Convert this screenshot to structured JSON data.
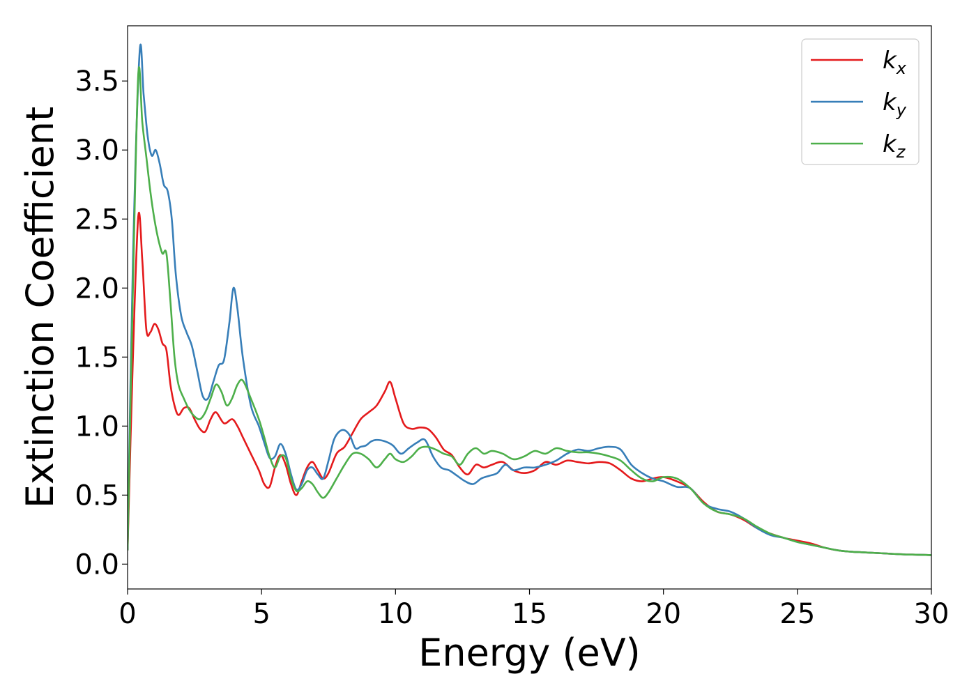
{
  "chart_data": {
    "type": "line",
    "xlabel": "Energy (eV)",
    "ylabel": "Extinction Coefficient",
    "xlim": [
      0,
      30
    ],
    "ylim": [
      -0.18,
      3.9
    ],
    "xticks": [
      0,
      5,
      10,
      15,
      20,
      25,
      30
    ],
    "xtick_labels": [
      "0",
      "5",
      "10",
      "15",
      "20",
      "25",
      "30"
    ],
    "yticks": [
      0.0,
      0.5,
      1.0,
      1.5,
      2.0,
      2.5,
      3.0,
      3.5
    ],
    "ytick_labels": [
      "0.0",
      "0.5",
      "1.0",
      "1.5",
      "2.0",
      "2.5",
      "3.0",
      "3.5"
    ],
    "grid": false,
    "legend_position": "top-right",
    "series": [
      {
        "name": "k",
        "subscript": "x",
        "color": "#e41a1c",
        "x": [
          0,
          0.2,
          0.4,
          0.55,
          0.7,
          0.85,
          1.0,
          1.15,
          1.3,
          1.45,
          1.6,
          1.75,
          1.9,
          2.1,
          2.3,
          2.5,
          2.7,
          2.9,
          3.1,
          3.3,
          3.6,
          3.9,
          4.1,
          4.3,
          4.6,
          4.9,
          5.1,
          5.3,
          5.5,
          5.7,
          5.9,
          6.1,
          6.3,
          6.5,
          6.7,
          6.9,
          7.1,
          7.3,
          7.5,
          7.8,
          8.1,
          8.4,
          8.7,
          9.0,
          9.3,
          9.6,
          9.8,
          10.0,
          10.3,
          10.6,
          10.9,
          11.2,
          11.5,
          11.8,
          12.1,
          12.4,
          12.7,
          13.0,
          13.3,
          13.6,
          14.0,
          14.4,
          14.8,
          15.2,
          15.6,
          16.0,
          16.4,
          16.8,
          17.2,
          17.6,
          18.0,
          18.4,
          18.8,
          19.2,
          19.6,
          20.0,
          20.5,
          21.0,
          21.5,
          22.0,
          22.5,
          23.0,
          23.5,
          24.0,
          24.5,
          25.0,
          25.5,
          26.0,
          26.5,
          27.0,
          27.5,
          28.0,
          28.5,
          29.0,
          29.5,
          30.0
        ],
        "y": [
          0.1,
          1.5,
          2.52,
          2.2,
          1.7,
          1.68,
          1.74,
          1.7,
          1.6,
          1.55,
          1.3,
          1.15,
          1.08,
          1.13,
          1.13,
          1.05,
          0.98,
          0.96,
          1.05,
          1.1,
          1.02,
          1.05,
          1.0,
          0.92,
          0.8,
          0.68,
          0.58,
          0.56,
          0.7,
          0.79,
          0.72,
          0.58,
          0.5,
          0.6,
          0.7,
          0.74,
          0.68,
          0.62,
          0.66,
          0.8,
          0.85,
          0.95,
          1.05,
          1.1,
          1.15,
          1.25,
          1.32,
          1.2,
          1.02,
          0.98,
          0.99,
          0.98,
          0.92,
          0.83,
          0.79,
          0.7,
          0.65,
          0.72,
          0.7,
          0.72,
          0.74,
          0.68,
          0.66,
          0.68,
          0.74,
          0.72,
          0.75,
          0.74,
          0.73,
          0.74,
          0.73,
          0.68,
          0.62,
          0.6,
          0.62,
          0.63,
          0.6,
          0.55,
          0.45,
          0.38,
          0.36,
          0.32,
          0.26,
          0.22,
          0.19,
          0.17,
          0.15,
          0.12,
          0.1,
          0.09,
          0.085,
          0.08,
          0.075,
          0.07,
          0.068,
          0.065
        ]
      },
      {
        "name": "k",
        "subscript": "y",
        "color": "#377eb8",
        "x": [
          0,
          0.2,
          0.45,
          0.6,
          0.75,
          0.9,
          1.05,
          1.2,
          1.35,
          1.5,
          1.65,
          1.8,
          2.0,
          2.2,
          2.4,
          2.6,
          2.8,
          3.0,
          3.2,
          3.4,
          3.6,
          3.8,
          3.95,
          4.1,
          4.3,
          4.6,
          4.9,
          5.1,
          5.3,
          5.5,
          5.7,
          5.9,
          6.1,
          6.3,
          6.5,
          6.7,
          6.9,
          7.1,
          7.3,
          7.5,
          7.7,
          7.9,
          8.1,
          8.3,
          8.5,
          8.7,
          8.9,
          9.1,
          9.3,
          9.6,
          9.9,
          10.2,
          10.5,
          10.8,
          11.1,
          11.4,
          11.7,
          12.0,
          12.3,
          12.6,
          12.9,
          13.2,
          13.5,
          13.8,
          14.1,
          14.4,
          14.8,
          15.2,
          15.6,
          16.0,
          16.4,
          16.8,
          17.2,
          17.6,
          18.0,
          18.4,
          18.8,
          19.2,
          19.6,
          20.0,
          20.5,
          21.0,
          21.5,
          22.0,
          22.5,
          23.0,
          23.5,
          24.0,
          24.5,
          25.0,
          25.5,
          26.0,
          26.5,
          27.0,
          27.5,
          28.0,
          28.5,
          29.0,
          29.5,
          30.0
        ],
        "y": [
          0.1,
          2.2,
          3.71,
          3.4,
          3.1,
          2.96,
          3.0,
          2.9,
          2.75,
          2.7,
          2.5,
          2.1,
          1.8,
          1.68,
          1.58,
          1.4,
          1.22,
          1.2,
          1.32,
          1.44,
          1.48,
          1.75,
          2.0,
          1.85,
          1.5,
          1.15,
          1.0,
          0.88,
          0.77,
          0.78,
          0.87,
          0.8,
          0.65,
          0.54,
          0.58,
          0.68,
          0.7,
          0.65,
          0.62,
          0.75,
          0.9,
          0.96,
          0.97,
          0.93,
          0.84,
          0.85,
          0.86,
          0.89,
          0.9,
          0.89,
          0.86,
          0.8,
          0.84,
          0.88,
          0.9,
          0.78,
          0.7,
          0.68,
          0.64,
          0.6,
          0.58,
          0.62,
          0.64,
          0.66,
          0.72,
          0.68,
          0.7,
          0.7,
          0.72,
          0.75,
          0.8,
          0.83,
          0.82,
          0.84,
          0.85,
          0.83,
          0.72,
          0.66,
          0.62,
          0.6,
          0.56,
          0.55,
          0.44,
          0.4,
          0.38,
          0.33,
          0.26,
          0.21,
          0.19,
          0.16,
          0.14,
          0.12,
          0.1,
          0.09,
          0.085,
          0.08,
          0.075,
          0.07,
          0.068,
          0.065
        ]
      },
      {
        "name": "k",
        "subscript": "z",
        "color": "#4daf4a",
        "x": [
          0,
          0.2,
          0.4,
          0.55,
          0.7,
          0.85,
          1.0,
          1.15,
          1.3,
          1.45,
          1.6,
          1.75,
          1.9,
          2.1,
          2.3,
          2.5,
          2.7,
          2.9,
          3.1,
          3.3,
          3.5,
          3.7,
          3.9,
          4.1,
          4.3,
          4.6,
          4.9,
          5.1,
          5.3,
          5.5,
          5.7,
          5.9,
          6.1,
          6.3,
          6.5,
          6.7,
          6.9,
          7.1,
          7.3,
          7.5,
          7.8,
          8.1,
          8.4,
          8.7,
          9.0,
          9.3,
          9.6,
          9.8,
          10.0,
          10.3,
          10.6,
          10.9,
          11.2,
          11.5,
          11.8,
          12.1,
          12.4,
          12.7,
          13.0,
          13.3,
          13.6,
          14.0,
          14.4,
          14.8,
          15.2,
          15.6,
          16.0,
          16.4,
          16.8,
          17.2,
          17.6,
          18.0,
          18.4,
          18.8,
          19.2,
          19.6,
          20.0,
          20.5,
          21.0,
          21.5,
          22.0,
          22.5,
          23.0,
          23.5,
          24.0,
          24.5,
          25.0,
          25.5,
          26.0,
          26.5,
          27.0,
          27.5,
          28.0,
          28.5,
          29.0,
          29.5,
          30.0
        ],
        "y": [
          0.1,
          2.0,
          3.55,
          3.2,
          2.95,
          2.7,
          2.5,
          2.35,
          2.25,
          2.25,
          1.9,
          1.5,
          1.3,
          1.2,
          1.12,
          1.07,
          1.05,
          1.1,
          1.2,
          1.3,
          1.25,
          1.15,
          1.2,
          1.3,
          1.33,
          1.2,
          1.05,
          0.92,
          0.78,
          0.7,
          0.78,
          0.77,
          0.62,
          0.53,
          0.55,
          0.6,
          0.58,
          0.52,
          0.48,
          0.52,
          0.62,
          0.72,
          0.8,
          0.8,
          0.76,
          0.7,
          0.76,
          0.8,
          0.76,
          0.74,
          0.78,
          0.84,
          0.85,
          0.83,
          0.8,
          0.78,
          0.72,
          0.8,
          0.84,
          0.8,
          0.82,
          0.8,
          0.76,
          0.78,
          0.82,
          0.8,
          0.84,
          0.82,
          0.81,
          0.81,
          0.8,
          0.78,
          0.75,
          0.68,
          0.62,
          0.6,
          0.63,
          0.62,
          0.55,
          0.44,
          0.38,
          0.36,
          0.33,
          0.27,
          0.22,
          0.19,
          0.16,
          0.14,
          0.12,
          0.1,
          0.09,
          0.085,
          0.08,
          0.075,
          0.07,
          0.068,
          0.065
        ]
      }
    ]
  }
}
